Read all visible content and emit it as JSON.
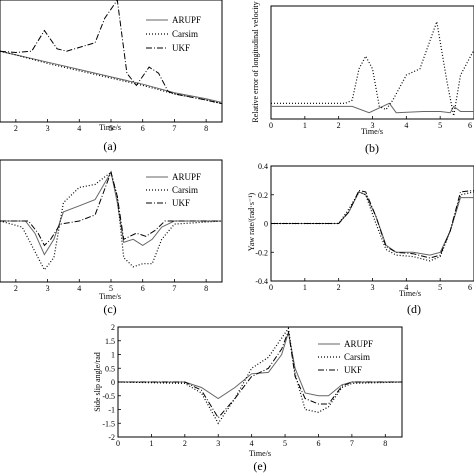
{
  "chart_data": [
    {
      "type": "line",
      "caption": "(a)",
      "xlabel": "Time/s",
      "ylabel": "",
      "xlim": [
        1.5,
        8.5
      ],
      "ylim": [
        0,
        1
      ],
      "xticks": [
        "2",
        "3",
        "4",
        "5",
        "6",
        "7",
        "8"
      ],
      "yticks": [],
      "legend_position": "top-right",
      "series": [
        {
          "name": "ARUPF",
          "style": "solid",
          "x": [
            1.5,
            2,
            3,
            4,
            5,
            6,
            7,
            8,
            8.5
          ],
          "y": [
            0.58,
            0.55,
            0.49,
            0.43,
            0.37,
            0.31,
            0.24,
            0.19,
            0.16
          ]
        },
        {
          "name": "Carsim",
          "style": "dotted",
          "x": [
            1.5,
            2,
            3,
            4,
            5,
            6,
            7,
            8,
            8.5
          ],
          "y": [
            0.58,
            0.55,
            0.48,
            0.42,
            0.36,
            0.3,
            0.23,
            0.18,
            0.15
          ]
        },
        {
          "name": "UKF",
          "style": "dashdot",
          "x": [
            1.5,
            2,
            2.5,
            2.9,
            3.3,
            3.6,
            4.5,
            4.8,
            5.2,
            5.5,
            5.8,
            6.2,
            6.5,
            6.8,
            7,
            8,
            8.5
          ],
          "y": [
            0.58,
            0.57,
            0.58,
            0.75,
            0.6,
            0.58,
            0.65,
            0.85,
            1.0,
            0.4,
            0.3,
            0.45,
            0.4,
            0.25,
            0.23,
            0.18,
            0.15
          ]
        }
      ]
    },
    {
      "type": "line",
      "caption": "(b)",
      "xlabel": "Time/s",
      "ylabel": "Relative error of longitudinal velocity",
      "xlim": [
        0,
        6
      ],
      "ylim": [
        0,
        1.8
      ],
      "xticks": [
        "0",
        "1",
        "2",
        "3",
        "4",
        "5",
        "6"
      ],
      "yticks": [],
      "series": [
        {
          "name": "",
          "style": "solid",
          "x": [
            0,
            2.4,
            2.9,
            3.3,
            3.5,
            3.7,
            4.5,
            5.0,
            5.3,
            5.4,
            5.6,
            6
          ],
          "y": [
            0.2,
            0.2,
            0.1,
            0.2,
            0.25,
            0.1,
            0.12,
            0.12,
            0.1,
            0.2,
            0.12,
            0.12
          ]
        },
        {
          "name": "",
          "style": "dotted",
          "x": [
            0,
            2.2,
            2.4,
            2.6,
            2.8,
            3.0,
            3.2,
            3.4,
            3.6,
            4.0,
            4.4,
            4.9,
            5.2,
            5.4,
            5.6,
            6
          ],
          "y": [
            0.25,
            0.25,
            0.3,
            0.8,
            1.0,
            0.8,
            0.2,
            0.15,
            0.3,
            0.7,
            0.8,
            1.55,
            0.6,
            0.05,
            0.7,
            1.1
          ]
        }
      ]
    },
    {
      "type": "line",
      "caption": "(c)",
      "xlabel": "Time/s",
      "ylabel": "",
      "xlim": [
        1.5,
        8.5
      ],
      "ylim": [
        -1,
        1
      ],
      "xticks": [
        "2",
        "3",
        "4",
        "5",
        "6",
        "7",
        "8"
      ],
      "yticks": [],
      "legend_position": "top-right",
      "series": [
        {
          "name": "ARUPF",
          "style": "solid",
          "x": [
            1.5,
            2.3,
            2.6,
            2.9,
            3.2,
            3.5,
            4.0,
            4.5,
            5.0,
            5.2,
            5.4,
            5.7,
            6.0,
            6.3,
            6.6,
            7,
            8.5
          ],
          "y": [
            0,
            0,
            -0.2,
            -0.55,
            -0.3,
            0.15,
            0.25,
            0.35,
            0.8,
            0.3,
            -0.35,
            -0.3,
            -0.4,
            -0.3,
            -0.1,
            0,
            0
          ]
        },
        {
          "name": "Carsim",
          "style": "dotted",
          "x": [
            1.5,
            2.2,
            2.6,
            2.9,
            3.2,
            3.5,
            4.0,
            4.5,
            5.0,
            5.2,
            5.4,
            5.7,
            6.0,
            6.3,
            6.6,
            7,
            8.5
          ],
          "y": [
            0,
            -0.1,
            -0.5,
            -0.8,
            -0.6,
            0.3,
            0.55,
            0.6,
            0.8,
            0.4,
            -0.6,
            -0.75,
            -0.7,
            -0.7,
            -0.3,
            -0.05,
            0
          ]
        },
        {
          "name": "UKF",
          "style": "dashdot",
          "x": [
            1.5,
            2.4,
            2.7,
            2.9,
            3.1,
            3.4,
            4.0,
            4.5,
            5.0,
            5.2,
            5.4,
            5.8,
            6.1,
            6.4,
            6.7,
            7,
            8.5
          ],
          "y": [
            0,
            0,
            -0.2,
            -0.4,
            -0.3,
            -0.05,
            0.0,
            0.1,
            0.8,
            0.4,
            -0.3,
            -0.2,
            -0.25,
            -0.15,
            0.0,
            0,
            0
          ]
        }
      ]
    },
    {
      "type": "line",
      "caption": "(d)",
      "xlabel": "Time/s",
      "ylabel": "Yaw rate/(rad·s⁻¹)",
      "xlim": [
        0,
        6
      ],
      "ylim": [
        -0.4,
        0.4
      ],
      "xticks": [
        "0",
        "1",
        "2",
        "3",
        "4",
        "5",
        "6"
      ],
      "yticks": [
        "-0.4",
        "-0.2",
        "0",
        "0.2",
        "0.4"
      ],
      "series": [
        {
          "name": "",
          "style": "solid",
          "x": [
            0,
            2.0,
            2.3,
            2.6,
            2.8,
            3.1,
            3.4,
            3.7,
            4.2,
            4.7,
            5.0,
            5.3,
            5.6,
            6
          ],
          "y": [
            0,
            0,
            0.08,
            0.22,
            0.2,
            0.05,
            -0.15,
            -0.2,
            -0.2,
            -0.22,
            -0.2,
            -0.05,
            0.18,
            0.18
          ]
        },
        {
          "name": "",
          "style": "dotted",
          "x": [
            0,
            2.0,
            2.3,
            2.6,
            2.8,
            3.1,
            3.4,
            3.7,
            4.2,
            4.7,
            5.0,
            5.3,
            5.6,
            6
          ],
          "y": [
            0,
            0,
            0.1,
            0.22,
            0.2,
            0.0,
            -0.18,
            -0.22,
            -0.23,
            -0.26,
            -0.23,
            -0.05,
            0.2,
            0.22
          ]
        },
        {
          "name": "",
          "style": "dashdot",
          "x": [
            0,
            2.0,
            2.3,
            2.6,
            2.8,
            3.1,
            3.4,
            3.7,
            4.2,
            4.7,
            5.0,
            5.3,
            5.6,
            6
          ],
          "y": [
            0,
            0,
            0.08,
            0.23,
            0.22,
            0.05,
            -0.16,
            -0.2,
            -0.21,
            -0.24,
            -0.22,
            -0.05,
            0.22,
            0.23
          ]
        }
      ]
    },
    {
      "type": "line",
      "caption": "(e)",
      "xlabel": "Time/s",
      "ylabel": "Side slip angle/rad",
      "xlim": [
        0,
        8.5
      ],
      "ylim": [
        -2,
        2
      ],
      "xticks": [
        "0",
        "1",
        "2",
        "3",
        "4",
        "5",
        "6",
        "7",
        "8"
      ],
      "yticks": [
        "-2",
        "-1.5",
        "-1",
        "-0.5",
        "0",
        "0.5",
        "1",
        "1.5",
        "2"
      ],
      "legend_position": "top-right",
      "series": [
        {
          "name": "ARUPF",
          "style": "solid",
          "x": [
            0,
            2.0,
            2.5,
            3.0,
            3.5,
            4.0,
            4.5,
            4.9,
            5.1,
            5.3,
            5.6,
            6.0,
            6.3,
            6.7,
            7,
            8.5
          ],
          "y": [
            0,
            0,
            -0.2,
            -0.6,
            -0.2,
            0.3,
            0.35,
            1.0,
            1.8,
            0.5,
            -0.4,
            -0.5,
            -0.5,
            -0.1,
            0,
            0
          ]
        },
        {
          "name": "Carsim",
          "style": "dotted",
          "x": [
            0,
            2.0,
            2.5,
            3.0,
            3.5,
            4.0,
            4.5,
            4.9,
            5.1,
            5.3,
            5.6,
            6.0,
            6.3,
            6.7,
            7,
            8.5
          ],
          "y": [
            0,
            -0.05,
            -0.4,
            -1.5,
            -0.6,
            0.5,
            0.9,
            1.6,
            1.95,
            0.3,
            -1.0,
            -1.1,
            -0.9,
            -0.2,
            -0.05,
            0
          ]
        },
        {
          "name": "UKF",
          "style": "dashdot",
          "x": [
            0,
            2.0,
            2.5,
            3.0,
            3.5,
            4.0,
            4.5,
            4.9,
            5.1,
            5.3,
            5.6,
            6.0,
            6.3,
            6.7,
            7,
            8.5
          ],
          "y": [
            0,
            0,
            -0.3,
            -1.3,
            -0.6,
            0.2,
            0.5,
            1.2,
            1.85,
            0.2,
            -0.6,
            -0.8,
            -0.8,
            -0.15,
            0,
            0
          ]
        }
      ]
    }
  ]
}
